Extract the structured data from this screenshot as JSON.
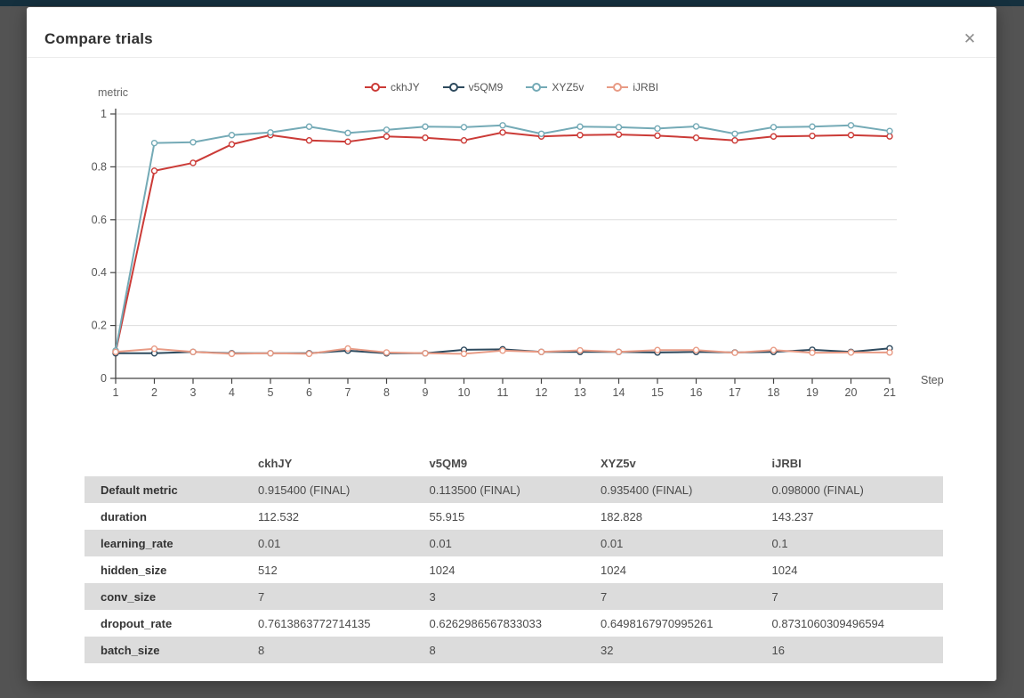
{
  "modal": {
    "title": "Compare trials",
    "close_label": "✕"
  },
  "chart_data": {
    "type": "line",
    "title": "",
    "ylabel": "metric",
    "xlabel": "Step",
    "x": [
      1,
      2,
      3,
      4,
      5,
      6,
      7,
      8,
      9,
      10,
      11,
      12,
      13,
      14,
      15,
      16,
      17,
      18,
      19,
      20,
      21
    ],
    "ylim": [
      0,
      1
    ],
    "yticks": [
      0,
      0.2,
      0.4,
      0.6,
      0.8,
      1
    ],
    "grid": true,
    "legend_position": "top",
    "series": [
      {
        "name": "ckhJY",
        "color": "#cb3b37",
        "values": [
          0.1,
          0.785,
          0.815,
          0.885,
          0.92,
          0.9,
          0.895,
          0.915,
          0.91,
          0.9,
          0.93,
          0.915,
          0.92,
          0.922,
          0.918,
          0.91,
          0.9,
          0.915,
          0.917,
          0.92,
          0.9154
        ]
      },
      {
        "name": "v5QM9",
        "color": "#2e4a5e",
        "values": [
          0.095,
          0.095,
          0.1,
          0.095,
          0.095,
          0.095,
          0.105,
          0.095,
          0.095,
          0.108,
          0.11,
          0.1,
          0.1,
          0.1,
          0.098,
          0.1,
          0.098,
          0.1,
          0.108,
          0.1,
          0.1135
        ]
      },
      {
        "name": "XYZ5v",
        "color": "#74aab6",
        "values": [
          0.105,
          0.89,
          0.893,
          0.92,
          0.93,
          0.952,
          0.928,
          0.94,
          0.952,
          0.95,
          0.957,
          0.925,
          0.952,
          0.95,
          0.945,
          0.953,
          0.925,
          0.95,
          0.952,
          0.957,
          0.9354
        ]
      },
      {
        "name": "iJRBI",
        "color": "#e89b85",
        "values": [
          0.1,
          0.112,
          0.1,
          0.093,
          0.095,
          0.093,
          0.113,
          0.098,
          0.095,
          0.093,
          0.105,
          0.1,
          0.106,
          0.1,
          0.107,
          0.107,
          0.097,
          0.107,
          0.097,
          0.098,
          0.098
        ]
      }
    ]
  },
  "table": {
    "columns": [
      "ckhJY",
      "v5QM9",
      "XYZ5v",
      "iJRBI"
    ],
    "rows": [
      {
        "label": "Default metric",
        "values": [
          "0.915400 (FINAL)",
          "0.113500 (FINAL)",
          "0.935400 (FINAL)",
          "0.098000 (FINAL)"
        ]
      },
      {
        "label": "duration",
        "values": [
          "112.532",
          "55.915",
          "182.828",
          "143.237"
        ]
      },
      {
        "label": "learning_rate",
        "values": [
          "0.01",
          "0.01",
          "0.01",
          "0.1"
        ]
      },
      {
        "label": "hidden_size",
        "values": [
          "512",
          "1024",
          "1024",
          "1024"
        ]
      },
      {
        "label": "conv_size",
        "values": [
          "7",
          "3",
          "7",
          "7"
        ]
      },
      {
        "label": "dropout_rate",
        "values": [
          "0.7613863772714135",
          "0.6262986567833033",
          "0.6498167970995261",
          "0.8731060309496594"
        ]
      },
      {
        "label": "batch_size",
        "values": [
          "8",
          "8",
          "32",
          "16"
        ]
      }
    ]
  }
}
